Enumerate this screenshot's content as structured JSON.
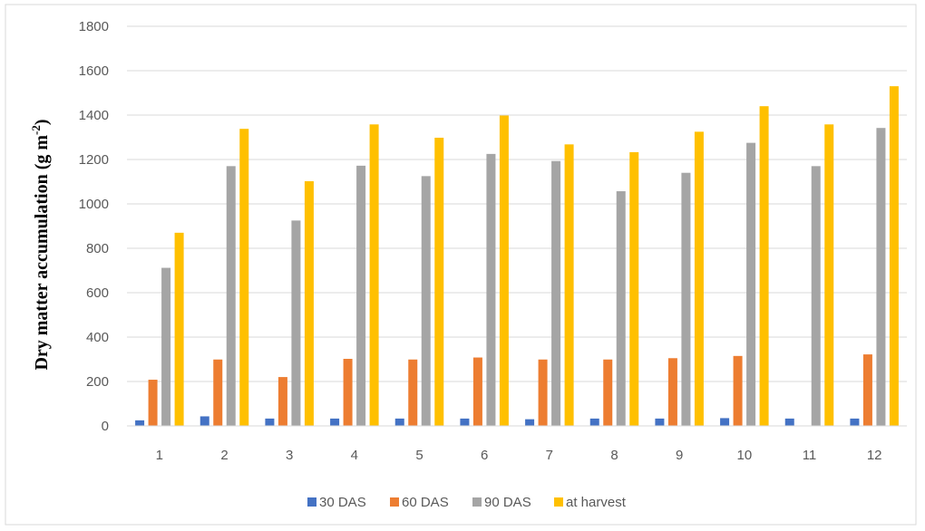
{
  "chart_data": {
    "type": "bar",
    "title": "",
    "xlabel": "",
    "ylabel": "Dry matter accumulation (g m",
    "ylabel_sup": "-2",
    "ylabel_close": ")",
    "ylim": [
      0,
      1800
    ],
    "yticks": [
      0,
      200,
      400,
      600,
      800,
      1000,
      1200,
      1400,
      1600,
      1800
    ],
    "grid": true,
    "legend_position": "bottom",
    "categories": [
      "1",
      "2",
      "3",
      "4",
      "5",
      "6",
      "7",
      "8",
      "9",
      "10",
      "11",
      "12"
    ],
    "series": [
      {
        "name": "30 DAS",
        "color": "#4472C4",
        "values": [
          25,
          43,
          33,
          33,
          33,
          33,
          30,
          33,
          33,
          35,
          33,
          33
        ]
      },
      {
        "name": "60 DAS",
        "color": "#ED7D31",
        "values": [
          208,
          299,
          220,
          302,
          299,
          308,
          299,
          299,
          305,
          315,
          0,
          322
        ]
      },
      {
        "name": "90 DAS",
        "color": "#A5A5A5",
        "values": [
          712,
          1170,
          925,
          1172,
          1125,
          1225,
          1193,
          1057,
          1140,
          1275,
          1170,
          1342
        ]
      },
      {
        "name": "at harvest",
        "color": "#FFC000",
        "values": [
          870,
          1338,
          1102,
          1358,
          1298,
          1398,
          1268,
          1233,
          1325,
          1440,
          1358,
          1530
        ]
      }
    ]
  }
}
